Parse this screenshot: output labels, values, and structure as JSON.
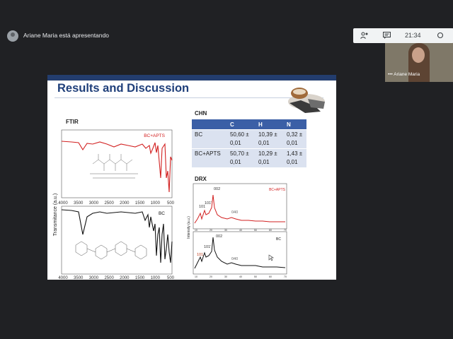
{
  "meeting": {
    "presenter_status": "Ariane Maria está apresentando",
    "clock": "21:34",
    "participant_name": "Ariane Maria",
    "more_label": "•••"
  },
  "slide": {
    "title": "Results and Discussion",
    "ftir": {
      "heading": "FTIR",
      "y_axis_label": "Transmitance (a.u.)",
      "x_ticks": [
        "4000",
        "3500",
        "3000",
        "2500",
        "2000",
        "1500",
        "1000",
        "500"
      ],
      "top_label": "BC+APTS",
      "bottom_label": "BC"
    },
    "chn": {
      "heading": "CHN",
      "columns": [
        "",
        "C",
        "H",
        "N"
      ],
      "rows": [
        {
          "sample": "BC",
          "c": [
            "50,60 ±",
            "0,01"
          ],
          "h": [
            "10,39 ±",
            "0,01"
          ],
          "n": [
            "0,32 ±",
            "0,01"
          ]
        },
        {
          "sample": "BC+APTS",
          "c": [
            "50,70 ±",
            "0,01"
          ],
          "h": [
            "10,29 ±",
            "0,01"
          ],
          "n": [
            "1,43 ±",
            "0,01"
          ]
        }
      ]
    },
    "drx": {
      "heading": "DRX",
      "y_axis_label": "Intensity (a.u.)",
      "top_label": "BC+APTS",
      "bottom_label": "BC",
      "peaks": [
        "101",
        "101'",
        "002",
        "040"
      ],
      "x_ticks": [
        "10",
        "20",
        "30",
        "40",
        "50",
        "60",
        "70"
      ]
    }
  },
  "colors": {
    "title": "#1f3f7a",
    "header_bar": "#233d6e",
    "table_header": "#3b5fa6",
    "table_cell": "#dbe2f0",
    "red_trace": "#d22020",
    "black_trace": "#111111"
  }
}
